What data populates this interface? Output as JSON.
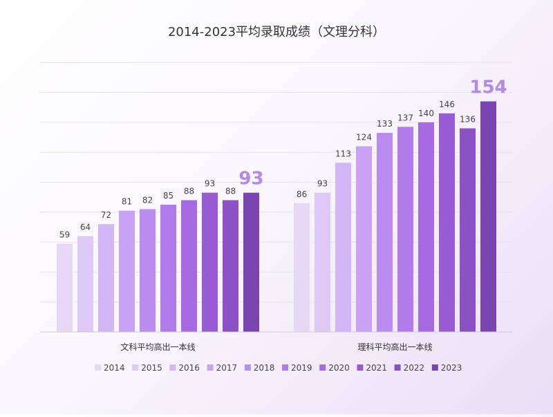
{
  "chart_data": {
    "type": "bar",
    "title": "2014-2023平均录取成绩（文理分科）",
    "groups": [
      "文科平均高出一本线",
      "理科平均高出一本线"
    ],
    "series": [
      {
        "name": "2014",
        "color": "#e7d9f6",
        "values": [
          59,
          86
        ]
      },
      {
        "name": "2015",
        "color": "#ddc8f6",
        "values": [
          64,
          93
        ]
      },
      {
        "name": "2016",
        "color": "#d3b6f6",
        "values": [
          72,
          113
        ]
      },
      {
        "name": "2017",
        "color": "#c9a2f5",
        "values": [
          81,
          124
        ]
      },
      {
        "name": "2018",
        "color": "#bb8cf0",
        "values": [
          82,
          133
        ]
      },
      {
        "name": "2019",
        "color": "#b27bec",
        "values": [
          85,
          137
        ]
      },
      {
        "name": "2020",
        "color": "#a76ae2",
        "values": [
          88,
          140
        ]
      },
      {
        "name": "2021",
        "color": "#995bd4",
        "values": [
          93,
          146
        ]
      },
      {
        "name": "2022",
        "color": "#8d51c6",
        "values": [
          88,
          136
        ]
      },
      {
        "name": "2023",
        "color": "#7a44b1",
        "values": [
          93,
          154
        ]
      }
    ],
    "ylim": [
      0,
      160
    ],
    "grid": true,
    "legend_placement": "bottom",
    "highlight": {
      "series": "2023",
      "color": "#b38ae8"
    },
    "xlabel": "",
    "ylabel": ""
  }
}
